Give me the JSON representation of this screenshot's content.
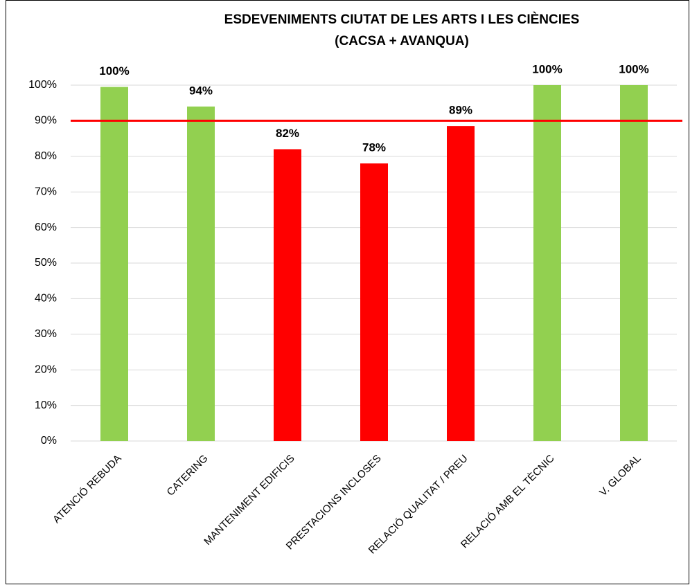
{
  "chart_data": {
    "type": "bar",
    "title": [
      "ESDEVENIMENTS CIUTAT DE LES ARTS I LES CIÈNCIES",
      "(CACSA + AVANQUA)"
    ],
    "categories": [
      "ATENCIÓ REBUDA",
      "CATERING",
      "MANTENIMENT EDIFICIS",
      "PRESTACIONS INCLOSES",
      "RELACIÓ QUALITAT / PREU",
      "RELACIÓ AMB EL TÈCNIC",
      "V. GLOBAL"
    ],
    "values": [
      99.5,
      94,
      82,
      78,
      88.5,
      100,
      100
    ],
    "value_labels": [
      "100%",
      "94%",
      "82%",
      "78%",
      "89%",
      "100%",
      "100%"
    ],
    "colors": [
      "#92d050",
      "#92d050",
      "#ff0000",
      "#ff0000",
      "#ff0000",
      "#92d050",
      "#92d050"
    ],
    "target": 90,
    "target_color": "#ff0000",
    "ylim": [
      0,
      100
    ],
    "yticks": [
      {
        "value": 0,
        "label": "0%"
      },
      {
        "value": 10,
        "label": "10%"
      },
      {
        "value": 20,
        "label": "20%"
      },
      {
        "value": 30,
        "label": "30%"
      },
      {
        "value": 40,
        "label": "40%"
      },
      {
        "value": 50,
        "label": "50%"
      },
      {
        "value": 60,
        "label": "60%"
      },
      {
        "value": 70,
        "label": "70%"
      },
      {
        "value": 80,
        "label": "80%"
      },
      {
        "value": 90,
        "label": "90%"
      },
      {
        "value": 100,
        "label": "100%"
      }
    ],
    "grid": true
  }
}
